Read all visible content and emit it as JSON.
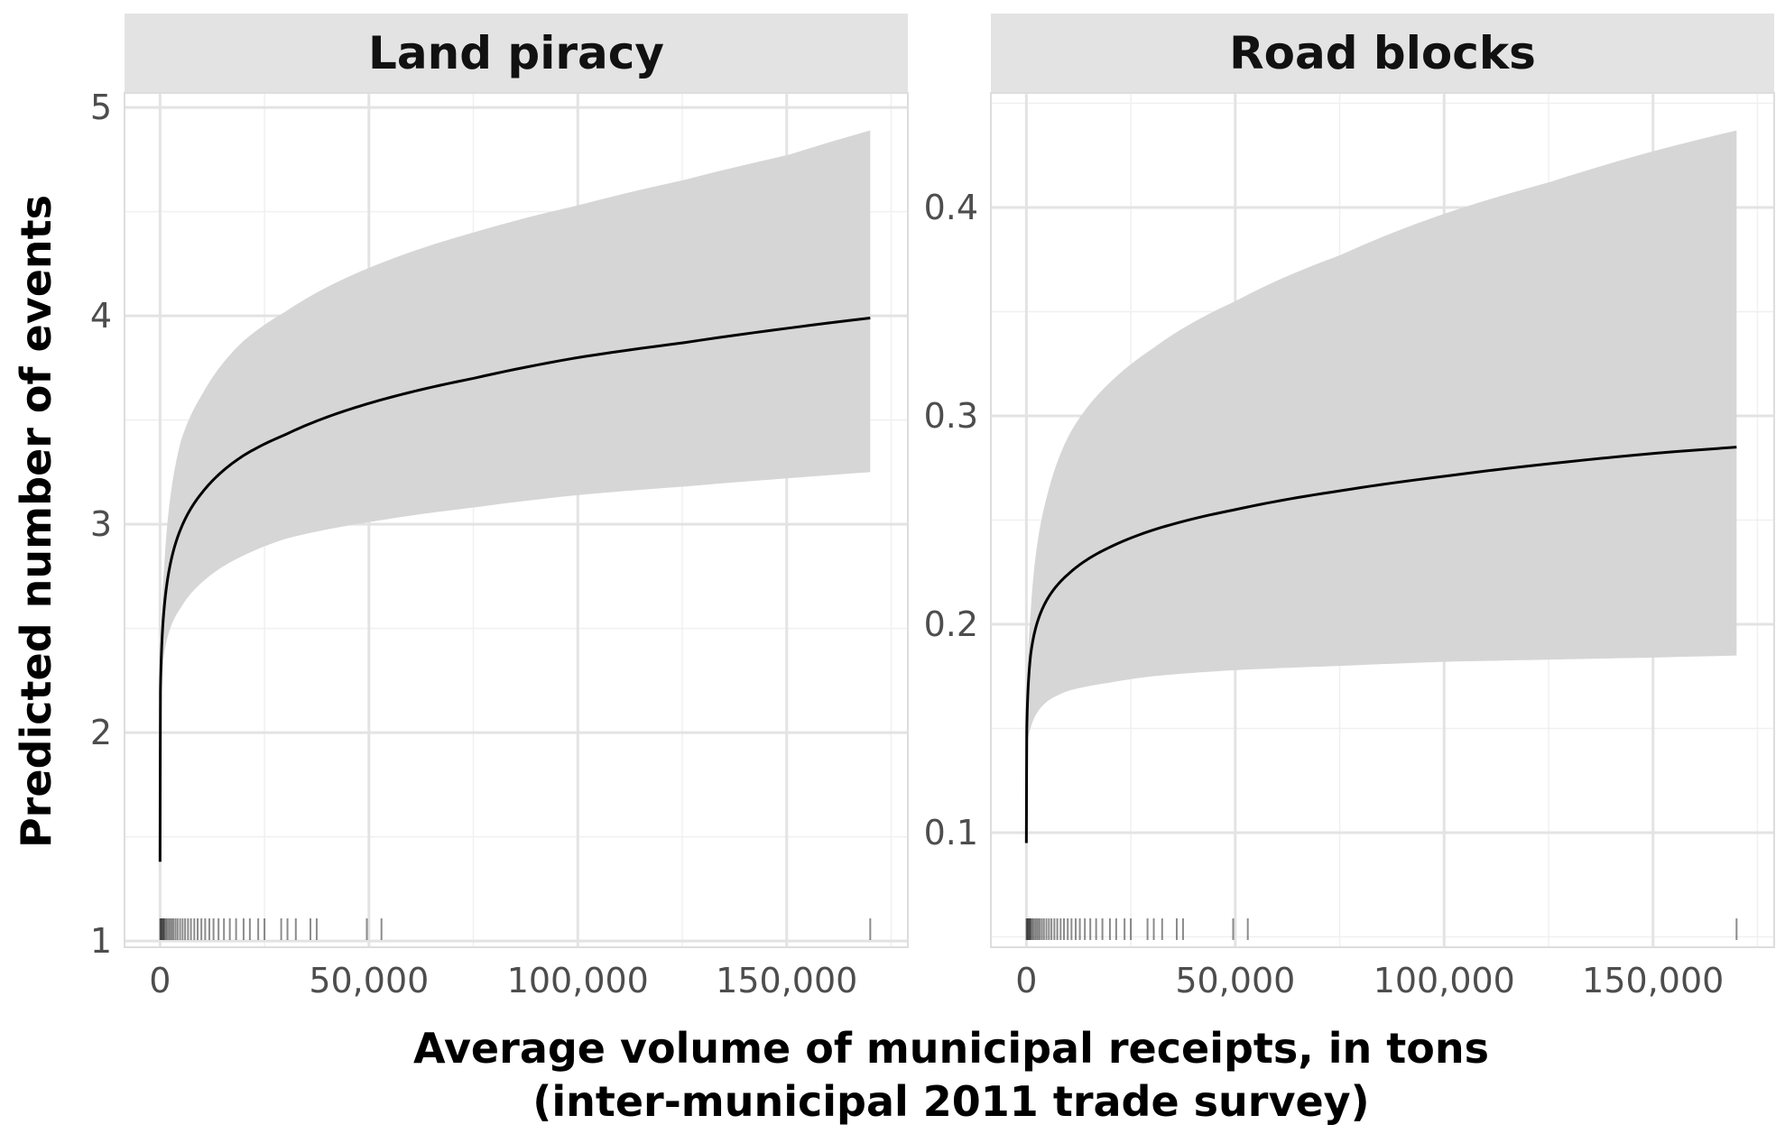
{
  "chart_data": {
    "type": "line",
    "title": "",
    "xlabel": "Average volume of municipal receipts, in tons",
    "xlabel_line2": "(inter-municipal 2011 trade survey)",
    "ylabel": "Predicted number of events",
    "colors": {
      "band": "#d6d6d6",
      "line": "#000000",
      "strip": "#e3e3e3",
      "grid": "#e3e3e3",
      "tick": "#4d4d4d"
    },
    "rug_x": [
      50,
      200,
      400,
      600,
      800,
      1000,
      1300,
      1600,
      2000,
      2400,
      2800,
      3200,
      3700,
      4200,
      4800,
      5400,
      6000,
      6700,
      7400,
      8200,
      9000,
      9900,
      10800,
      11800,
      12800,
      14000,
      15300,
      16700,
      18200,
      20000,
      21500,
      23500,
      25000,
      29000,
      30500,
      32500,
      36000,
      37500,
      49500,
      53000,
      170000
    ],
    "panels": [
      {
        "strip_label": "Land piracy",
        "xlim": [
          -8500,
          179000
        ],
        "ylim": [
          0.97,
          5.07
        ],
        "x_ticks": [
          0,
          50000,
          100000,
          150000
        ],
        "x_tick_labels": [
          "0",
          "50,000",
          "100,000",
          "150,000"
        ],
        "y_ticks": [
          1,
          2,
          3,
          4,
          5
        ],
        "y_tick_labels": [
          "1",
          "2",
          "3",
          "4",
          "5"
        ],
        "fit": {
          "x": [
            0,
            100,
            1000,
            5000,
            10000,
            20000,
            30000,
            50000,
            75000,
            100000,
            125000,
            150000,
            170000
          ],
          "y": [
            1.38,
            2.2,
            2.6,
            2.98,
            3.15,
            3.33,
            3.43,
            3.58,
            3.7,
            3.8,
            3.87,
            3.94,
            3.99
          ],
          "lower": [
            1.38,
            2.1,
            2.38,
            2.6,
            2.72,
            2.85,
            2.93,
            3.01,
            3.08,
            3.14,
            3.18,
            3.22,
            3.25
          ],
          "upper": [
            1.38,
            2.3,
            2.8,
            3.4,
            3.62,
            3.88,
            4.02,
            4.23,
            4.4,
            4.53,
            4.65,
            4.77,
            4.89
          ]
        }
      },
      {
        "strip_label": "Road blocks",
        "xlim": [
          -8500,
          179000
        ],
        "ylim": [
          0.045,
          0.455
        ],
        "x_ticks": [
          0,
          50000,
          100000,
          150000
        ],
        "x_tick_labels": [
          "0",
          "50,000",
          "100,000",
          "150,000"
        ],
        "y_ticks": [
          0.1,
          0.2,
          0.3,
          0.4
        ],
        "y_tick_labels": [
          "0.1",
          "0.2",
          "0.3",
          "0.4"
        ],
        "fit": {
          "x": [
            0,
            100,
            1000,
            5000,
            10000,
            20000,
            30000,
            50000,
            75000,
            100000,
            125000,
            150000,
            170000
          ],
          "y": [
            0.095,
            0.15,
            0.185,
            0.212,
            0.224,
            0.237,
            0.245,
            0.255,
            0.264,
            0.271,
            0.277,
            0.282,
            0.285
          ],
          "lower": [
            0.095,
            0.14,
            0.15,
            0.163,
            0.168,
            0.172,
            0.175,
            0.178,
            0.18,
            0.182,
            0.183,
            0.184,
            0.185
          ],
          "upper": [
            0.095,
            0.16,
            0.205,
            0.262,
            0.29,
            0.316,
            0.332,
            0.355,
            0.377,
            0.397,
            0.412,
            0.427,
            0.437
          ]
        }
      }
    ]
  }
}
